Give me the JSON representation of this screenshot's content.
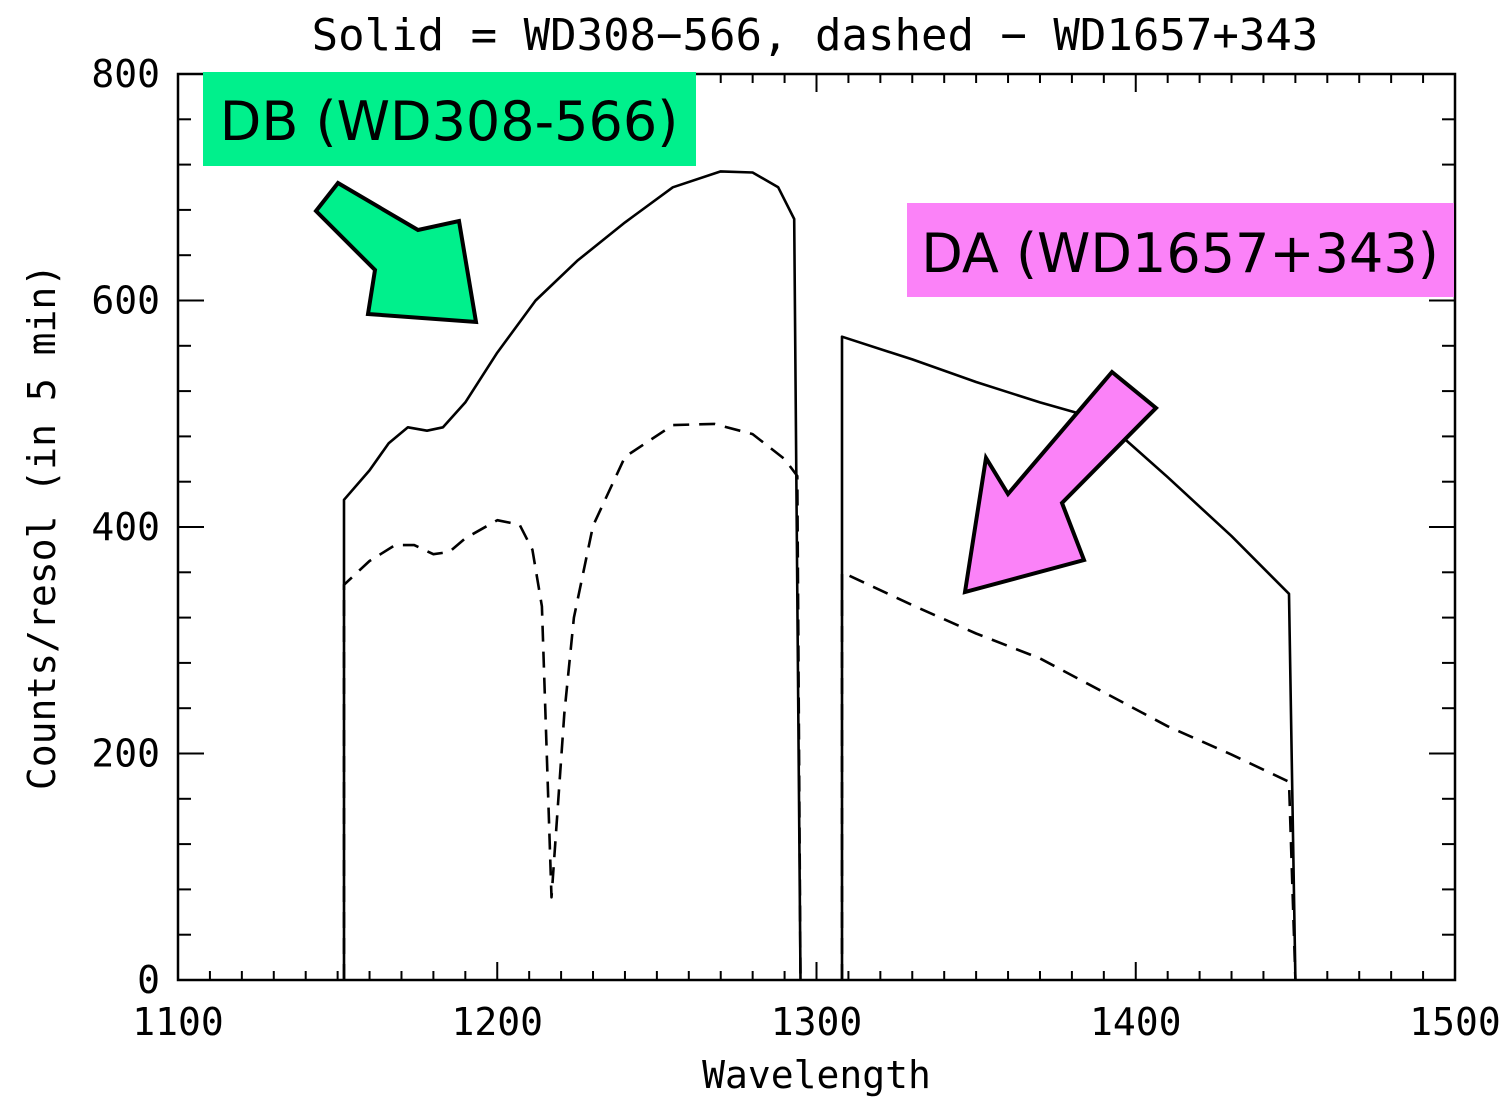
{
  "chart_data": {
    "type": "line",
    "title": "Solid = WD308−566, dashed − WD1657+343",
    "xlabel": "Wavelength",
    "ylabel": "Counts/resol (in 5 min)",
    "xlim": [
      1100,
      1500
    ],
    "ylim": [
      0,
      800
    ],
    "x_ticks": [
      "1100",
      "1200",
      "1300",
      "1400",
      "1500"
    ],
    "y_ticks": [
      "0",
      "200",
      "400",
      "600",
      "800"
    ],
    "series": [
      {
        "style": "solid",
        "segments": [
          [
            [
              1152,
              0
            ],
            [
              1152,
              424
            ],
            [
              1160,
              450
            ],
            [
              1166,
              474
            ],
            [
              1172,
              488
            ],
            [
              1178,
              485
            ],
            [
              1183,
              488
            ],
            [
              1190,
              510
            ],
            [
              1200,
              554
            ],
            [
              1212,
              600
            ],
            [
              1225,
              635
            ],
            [
              1240,
              669
            ],
            [
              1255,
              700
            ],
            [
              1270,
              714
            ],
            [
              1280,
              713
            ],
            [
              1288,
              700
            ],
            [
              1293,
              672
            ],
            [
              1295,
              0
            ]
          ],
          [
            [
              1308,
              0
            ],
            [
              1308,
              568
            ],
            [
              1330,
              548
            ],
            [
              1350,
              528
            ],
            [
              1370,
              510
            ],
            [
              1390,
              494
            ],
            [
              1410,
              444
            ],
            [
              1430,
              392
            ],
            [
              1448,
              341
            ],
            [
              1450,
              0
            ]
          ]
        ]
      },
      {
        "style": "dashed",
        "segments": [
          [
            [
              1152,
              0
            ],
            [
              1152,
              349
            ],
            [
              1160,
              370
            ],
            [
              1168,
              384
            ],
            [
              1174,
              384
            ],
            [
              1180,
              376
            ],
            [
              1185,
              378
            ],
            [
              1190,
              390
            ],
            [
              1200,
              406
            ],
            [
              1207,
              402
            ],
            [
              1211,
              380
            ],
            [
              1214,
              330
            ],
            [
              1217,
              73
            ],
            [
              1221,
              235
            ],
            [
              1224,
              320
            ],
            [
              1230,
              401
            ],
            [
              1240,
              462
            ],
            [
              1255,
              490
            ],
            [
              1268,
              491
            ],
            [
              1280,
              482
            ],
            [
              1290,
              460
            ],
            [
              1294,
              445
            ],
            [
              1295,
              0
            ]
          ],
          [
            [
              1308,
              0
            ],
            [
              1308,
              360
            ],
            [
              1330,
              331
            ],
            [
              1350,
              306
            ],
            [
              1370,
              284
            ],
            [
              1390,
              254
            ],
            [
              1410,
              224
            ],
            [
              1430,
              199
            ],
            [
              1448,
              175
            ],
            [
              1450,
              0
            ]
          ]
        ]
      }
    ]
  },
  "annotations": [
    {
      "id": "db",
      "label": "DB (WD308-566)",
      "color": "#00f08c"
    },
    {
      "id": "da",
      "label": "DA (WD1657+343)",
      "color": "#fb82f8"
    }
  ]
}
